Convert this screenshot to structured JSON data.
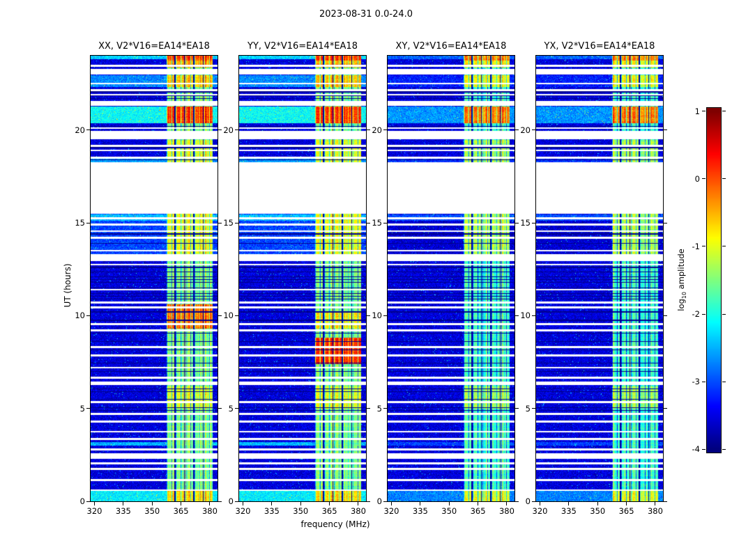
{
  "chart_data": {
    "type": "heatmap",
    "title": "2023-08-31 0.0-24.0",
    "colormap": "jet",
    "panels": [
      {
        "id": "XX",
        "title": "XX, V2*V16=EA14*EA18",
        "rfi_offset": 0,
        "broad_offset": 0,
        "rfi_hot": [
          {
            "t": [
              9.3,
              10.6
            ],
            "boost": 1.35
          }
        ]
      },
      {
        "id": "YY",
        "title": "YY, V2*V16=EA14*EA18",
        "rfi_offset": 0,
        "broad_offset": 0,
        "rfi_hot": [
          {
            "t": [
              7.4,
              8.8
            ],
            "boost": 1.7
          },
          {
            "t": [
              9.3,
              10.2
            ],
            "boost": 0.7
          }
        ]
      },
      {
        "id": "XY",
        "title": "XY, V2*V16=EA14*EA18",
        "rfi_offset": -0.35,
        "broad_offset": -0.55,
        "rfi_hot": []
      },
      {
        "id": "YX",
        "title": "YX, V2*V16=EA14*EA18",
        "rfi_offset": -0.35,
        "broad_offset": -0.55,
        "rfi_hot": []
      }
    ],
    "x_axis": {
      "label": "frequency (MHz)",
      "min": 318,
      "max": 384,
      "ticks": [
        320,
        335,
        350,
        365,
        380
      ]
    },
    "y_axis": {
      "label": "UT (hours)",
      "min": 0,
      "max": 24,
      "ticks": [
        20,
        15,
        10,
        5,
        0
      ]
    },
    "colorbar": {
      "label_prefix": "log",
      "label_sub": "10",
      "label_suffix": " amplitude",
      "min": -4.05,
      "max": 1.05,
      "ticks": [
        1,
        0,
        -1,
        -2,
        -3,
        -4
      ]
    },
    "features": {
      "background_level": -3.55,
      "noise_sigma": 0.33,
      "speckle_prob": 0.015,
      "speckle_boost": 0.9,
      "rfi_band": {
        "f_start": 357.5,
        "f_end": 381.5,
        "base_level": -1.45,
        "comb_period_mhz": 2.45,
        "comb_gap_frac": 0.13,
        "comb_gap_depth": -1.3,
        "dark_lines_mhz": [
          361.9,
          366.8,
          371.7,
          376.6
        ],
        "dark_line_halfwidth_mhz": 0.3
      },
      "rfi_hot_common": [
        {
          "t": [
            0.0,
            0.55
          ],
          "boost": 0.8
        },
        {
          "t": [
            5.0,
            6.2
          ],
          "boost": 0.5
        },
        {
          "t": [
            13.3,
            15.5
          ],
          "boost": 0.55
        },
        {
          "t": [
            18.25,
            19.45
          ],
          "boost": 0.5
        },
        {
          "t": [
            20.35,
            21.28
          ],
          "boost": 1.6
        },
        {
          "t": [
            22.3,
            22.95
          ],
          "boost": 0.9
        },
        {
          "t": [
            23.35,
            23.75
          ],
          "boost": 1.0
        },
        {
          "t": [
            23.75,
            24.0
          ],
          "boost": 1.55
        }
      ],
      "bright_rows": [
        {
          "t": [
            0.0,
            0.55
          ],
          "level": -2.2
        },
        {
          "t": [
            3.0,
            3.2
          ],
          "level": -2.5
        },
        {
          "t": [
            13.3,
            15.5
          ],
          "level": -3.05
        },
        {
          "t": [
            15.1,
            15.45
          ],
          "level": -2.45
        },
        {
          "t": [
            18.25,
            18.45
          ],
          "level": -2.6
        },
        {
          "t": [
            20.35,
            21.28
          ],
          "level": -2.1
        },
        {
          "t": [
            22.3,
            22.95
          ],
          "level": -2.7
        },
        {
          "t": [
            23.8,
            24.0
          ],
          "level": -2.35
        }
      ],
      "time_gaps": [
        [
          2.3,
          2.6
        ],
        [
          6.25,
          6.45
        ],
        [
          12.95,
          13.3
        ],
        [
          15.5,
          18.25
        ],
        [
          19.5,
          19.95
        ],
        [
          21.3,
          21.55
        ],
        [
          23.0,
          23.3
        ]
      ],
      "thin_gaps": [
        0.6,
        1.15,
        1.75,
        2.05,
        2.8,
        3.35,
        3.75,
        4.3,
        4.7,
        5.35,
        6.65,
        7.2,
        7.85,
        8.3,
        9.2,
        9.55,
        10.45,
        10.7,
        11.4,
        12.75,
        13.5,
        14.2,
        14.55,
        14.9,
        15.25,
        18.5,
        18.9,
        19.15,
        20.1,
        21.9,
        22.15,
        22.5,
        23.45
      ],
      "dark_rows": [
        4.9,
        5.05,
        5.5,
        5.9,
        6.05,
        7.0,
        7.45,
        8.15,
        8.6,
        9.05,
        9.75,
        10.2,
        10.9,
        11.05,
        11.2,
        11.5,
        11.8,
        11.95,
        12.1,
        12.35,
        12.6,
        13.9,
        14.4,
        18.4,
        19.05,
        20.2,
        21.7,
        21.85,
        22.05,
        23.5
      ]
    }
  }
}
